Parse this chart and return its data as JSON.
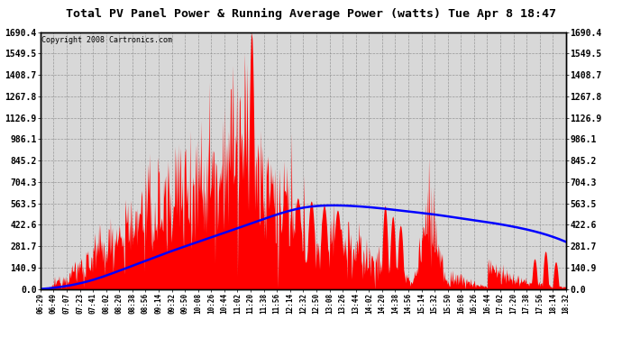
{
  "title": "Total PV Panel Power & Running Average Power (watts) Tue Apr 8 18:47",
  "copyright": "Copyright 2008 Cartronics.com",
  "plot_bg_color": "#d8d8d8",
  "fig_bg_color": "#ffffff",
  "grid_color": "#888888",
  "area_color": "red",
  "avg_line_color": "blue",
  "title_color": "black",
  "yticks": [
    0.0,
    140.9,
    281.7,
    422.6,
    563.5,
    704.3,
    845.2,
    986.1,
    1126.9,
    1267.8,
    1408.7,
    1549.5,
    1690.4
  ],
  "ymax": 1690.4,
  "x_labels": [
    "06:29",
    "06:49",
    "07:07",
    "07:23",
    "07:41",
    "08:02",
    "08:20",
    "08:38",
    "08:56",
    "09:14",
    "09:32",
    "09:50",
    "10:08",
    "10:26",
    "10:44",
    "11:02",
    "11:20",
    "11:38",
    "11:56",
    "12:14",
    "12:32",
    "12:50",
    "13:08",
    "13:26",
    "13:44",
    "14:02",
    "14:20",
    "14:38",
    "14:56",
    "15:14",
    "15:32",
    "15:50",
    "16:08",
    "16:26",
    "16:44",
    "17:02",
    "17:20",
    "17:38",
    "17:56",
    "18:14",
    "18:32"
  ]
}
